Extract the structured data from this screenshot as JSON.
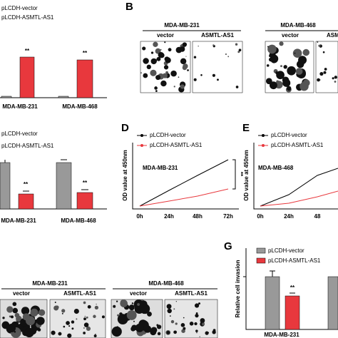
{
  "panel_a": {
    "legend": [
      "pLCDH-vector",
      "pLCDH-ASMTL-AS1"
    ],
    "groups": [
      "MDA-MB-231",
      "MDA-MB-468"
    ],
    "significance": [
      "**",
      "**"
    ]
  },
  "panel_b": {
    "label": "B",
    "cell_lines": [
      "MDA-MB-231",
      "MDA-MB-468"
    ],
    "conditions": [
      "vector",
      "ASMTL-AS1",
      "vector",
      "ASM"
    ]
  },
  "panel_c": {
    "legend": [
      "pLCDH-vector",
      "pLCDH-ASMTL-AS1"
    ],
    "groups": [
      "MDA-MB-231",
      "MDA-MB-468"
    ],
    "significance": [
      "**",
      "**"
    ]
  },
  "panel_d": {
    "label": "D",
    "y_label": "OD value at 450nm",
    "legend": [
      "pLCDH-vector",
      "pLCDH-ASMTL-AS1"
    ],
    "cell_line": "MDA-MB-231",
    "x": [
      "0h",
      "24h",
      "48h",
      "72h"
    ],
    "significance": "**"
  },
  "panel_e": {
    "label": "E",
    "y_label": "OD value at 450nm",
    "legend": [
      "pLCDH-vector",
      "pLCDH-ASMTL-AS1"
    ],
    "cell_line": "MDA-MB-468",
    "x": [
      "0h",
      "24h",
      "48"
    ]
  },
  "panel_f": {
    "cell_lines": [
      "MDA-MB-231",
      "MDA-MB-468"
    ],
    "conditions": [
      "vector",
      "ASMTL-AS1",
      "vector",
      "ASMTL-AS1"
    ]
  },
  "panel_g": {
    "label": "G",
    "y_label": "Relative cell invasion",
    "legend": [
      "pLCDH-vector",
      "pLCDH-ASMTL-AS1"
    ],
    "group": "MDA-MB-231",
    "significance": "**"
  }
}
